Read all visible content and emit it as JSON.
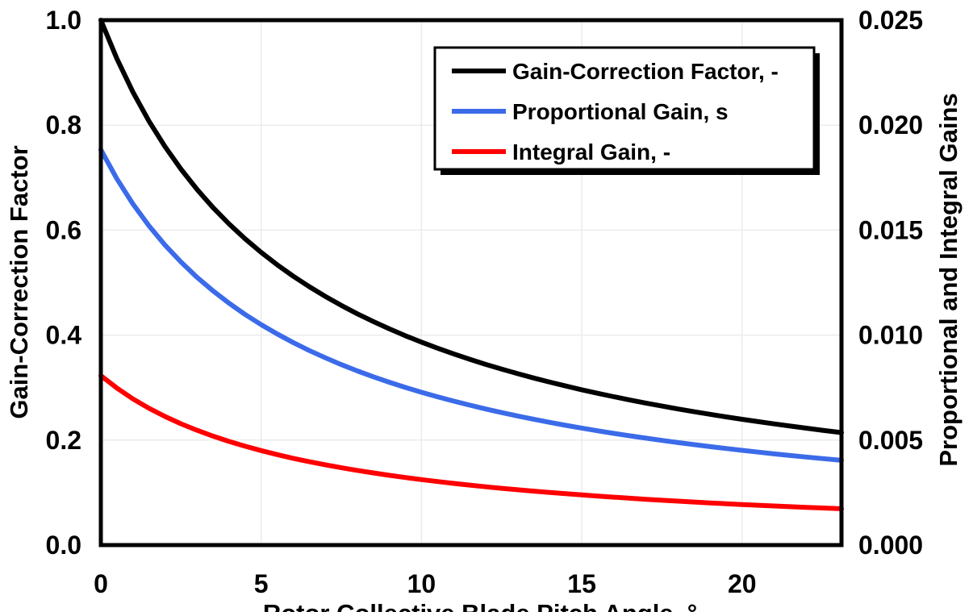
{
  "chart_data": {
    "type": "line",
    "title": "",
    "background": "#FFFFFF",
    "frame_color": "#000000",
    "gridline_color": "#EBEBEB",
    "grid": true,
    "x_axis": {
      "label": "Rotor Collective Blade Pitch Angle, °",
      "ticks": [
        0,
        5,
        10,
        15,
        20
      ],
      "tick_labels": [
        "0",
        "5",
        "10",
        "15",
        "20"
      ],
      "range": [
        0,
        23.1
      ]
    },
    "y_axis_left": {
      "label": "Gain-Correction Factor",
      "tick_values": [
        0.0,
        0.2,
        0.4,
        0.6,
        0.8,
        1.0
      ],
      "tick_labels": [
        "0.0",
        "0.2",
        "0.4",
        "0.6",
        "0.8",
        "1.0"
      ],
      "range": [
        0,
        1.0
      ]
    },
    "y_axis_right": {
      "label": "Proportional and Integral Gains",
      "tick_values": [
        0.0,
        0.005,
        0.01,
        0.015,
        0.02,
        0.025
      ],
      "tick_labels": [
        "0.000",
        "0.005",
        "0.010",
        "0.015",
        "0.020",
        "0.025"
      ],
      "range": [
        0,
        0.025
      ]
    },
    "legend": {
      "position": "top-center-inside",
      "border_color": "#000000",
      "shadow": true,
      "entries": [
        {
          "label": "Gain-Correction Factor, -",
          "color": "#000000"
        },
        {
          "label": "Proportional Gain, s",
          "color": "#3B6BE9"
        },
        {
          "label": "Integral Gain, -",
          "color": "#FF0000"
        }
      ]
    },
    "x": [
      0,
      0.5,
      1,
      1.5,
      2,
      2.5,
      3,
      3.5,
      4,
      4.5,
      5,
      5.5,
      6,
      6.5,
      7,
      7.5,
      8,
      8.5,
      9,
      9.5,
      10,
      10.5,
      11,
      11.5,
      12,
      12.5,
      13,
      13.5,
      14,
      14.5,
      15,
      15.5,
      16,
      16.5,
      17,
      17.5,
      18,
      18.5,
      19,
      19.5,
      20,
      20.5,
      21,
      21.5,
      22,
      22.5,
      23,
      23.1
    ],
    "series": [
      {
        "name": "Gain-Correction Factor, -",
        "axis": "left",
        "color": "#000000",
        "values": [
          1.0,
          0.9265,
          0.8631,
          0.8077,
          0.7591,
          0.716,
          0.6775,
          0.6429,
          0.6117,
          0.5834,
          0.5576,
          0.534,
          0.5123,
          0.4923,
          0.4738,
          0.4566,
          0.4406,
          0.4258,
          0.4119,
          0.3988,
          0.3866,
          0.3751,
          0.3643,
          0.354,
          0.3443,
          0.3352,
          0.3265,
          0.3183,
          0.3104,
          0.303,
          0.2959,
          0.2891,
          0.2826,
          0.2764,
          0.2705,
          0.2648,
          0.2593,
          0.2541,
          0.2491,
          0.2443,
          0.2396,
          0.2351,
          0.2308,
          0.2267,
          0.2227,
          0.2188,
          0.2151,
          0.2144
        ]
      },
      {
        "name": "Proportional Gain, s",
        "axis": "right",
        "color": "#3B6BE9",
        "values": [
          0.018827,
          0.017444,
          0.016249,
          0.015206,
          0.014291,
          0.01348,
          0.012755,
          0.012104,
          0.011516,
          0.010984,
          0.010498,
          0.010053,
          0.009645,
          0.009268,
          0.00892,
          0.008596,
          0.008295,
          0.008016,
          0.007755,
          0.007508,
          0.007278,
          0.007062,
          0.006859,
          0.006665,
          0.006482,
          0.006311,
          0.006147,
          0.005993,
          0.005844,
          0.005704,
          0.005571,
          0.005443,
          0.00532,
          0.005204,
          0.005093,
          0.004985,
          0.004882,
          0.004784,
          0.00469,
          0.004599,
          0.004511,
          0.004426,
          0.004345,
          0.004268,
          0.004193,
          0.004119,
          0.00405,
          0.004036
        ]
      },
      {
        "name": "Integral Gain, -",
        "axis": "right",
        "color": "#FF0000",
        "values": [
          0.008069,
          0.007476,
          0.006964,
          0.006517,
          0.006125,
          0.005777,
          0.005467,
          0.005187,
          0.004936,
          0.004707,
          0.004499,
          0.004309,
          0.004134,
          0.003972,
          0.003823,
          0.003684,
          0.003555,
          0.003436,
          0.003323,
          0.003218,
          0.003119,
          0.003027,
          0.002939,
          0.002856,
          0.002778,
          0.002705,
          0.002634,
          0.002568,
          0.002504,
          0.002445,
          0.002388,
          0.002333,
          0.00228,
          0.00223,
          0.002183,
          0.002137,
          0.002092,
          0.00205,
          0.00201,
          0.001971,
          0.001933,
          0.001897,
          0.001862,
          0.001829,
          0.001797,
          0.001765,
          0.001736,
          0.00173
        ]
      }
    ]
  }
}
